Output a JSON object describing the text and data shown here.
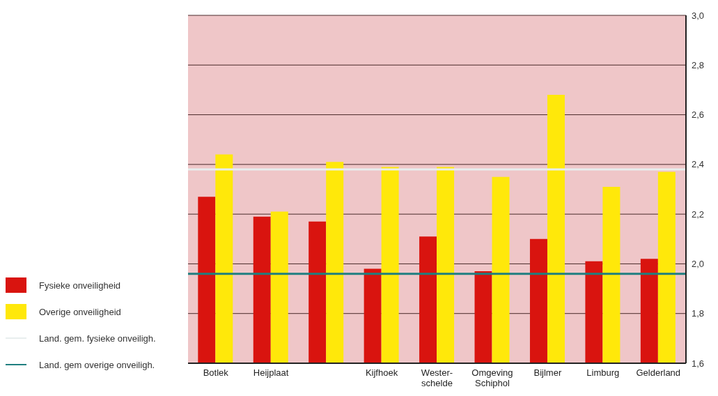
{
  "chart_data": {
    "type": "bar",
    "categories": [
      "Botlek",
      "Heijplaat",
      null,
      "Kijfhoek",
      "Wester- schelde",
      "Omgeving Schiphol",
      "Bijlmer",
      "Limburg",
      "Gelderland"
    ],
    "series": [
      {
        "name": "Fysieke onveiligheid",
        "color": "#d9140f",
        "values": [
          2.27,
          2.19,
          2.17,
          1.98,
          2.11,
          1.97,
          2.1,
          2.01,
          2.02
        ]
      },
      {
        "name": "Overige onveiligheid",
        "color": "#ffe80a",
        "values": [
          2.44,
          2.21,
          2.41,
          2.39,
          2.39,
          2.35,
          2.68,
          2.31,
          2.37
        ]
      }
    ],
    "ref_lines": [
      {
        "axis": "y",
        "value": 2.38,
        "label": "Land. gem. fysieke onveiligh.",
        "color": "#e8eeee"
      },
      {
        "axis": "y",
        "value": 1.96,
        "label": "Land. gem overige onveiligh.",
        "color": "#1f7f80"
      }
    ],
    "ylim": [
      1.6,
      3.0
    ],
    "yticks": [
      {
        "value": 1.6,
        "label": "1,6"
      },
      {
        "value": 1.8,
        "label": "1,8"
      },
      {
        "value": 2.0,
        "label": "2,0"
      },
      {
        "value": 2.2,
        "label": "2,2"
      },
      {
        "value": 2.4,
        "label": "2,4"
      },
      {
        "value": 2.6,
        "label": "2,6"
      },
      {
        "value": 2.8,
        "label": "2,8"
      },
      {
        "value": 3.0,
        "label": "3,0"
      }
    ],
    "grid": "y",
    "legend": "left"
  }
}
